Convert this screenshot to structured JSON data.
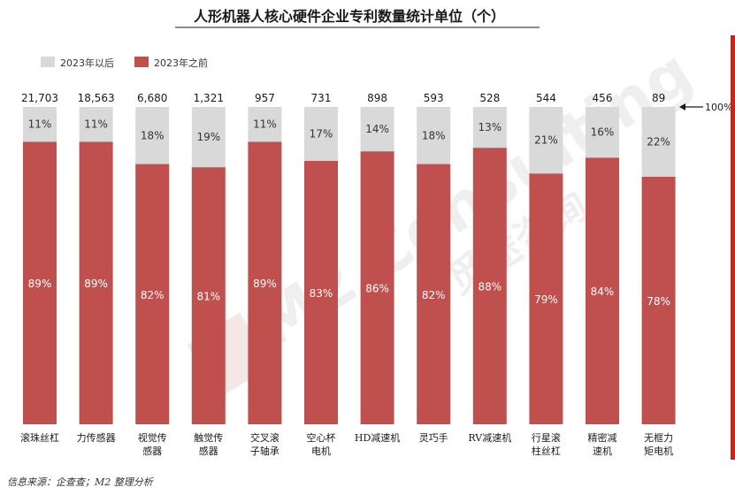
{
  "chart_data": {
    "type": "bar",
    "stacked": true,
    "normalized": true,
    "title": "人形机器人核心硬件企业专利数量统计单位（个）",
    "categories": [
      [
        "滚珠丝杠"
      ],
      [
        "力传感器"
      ],
      [
        "视觉传",
        "感器"
      ],
      [
        "触觉传",
        "感器"
      ],
      [
        "交叉滚",
        "子轴承"
      ],
      [
        "空心杯",
        "电机"
      ],
      [
        "HD减速机"
      ],
      [
        "灵巧手"
      ],
      [
        "RV减速机"
      ],
      [
        "行星滚",
        "柱丝杠"
      ],
      [
        "精密减",
        "速机"
      ],
      [
        "无框力",
        "矩电机"
      ]
    ],
    "totals": [
      "21,703",
      "18,563",
      "6,680",
      "1,321",
      "957",
      "731",
      "898",
      "593",
      "528",
      "544",
      "456",
      "89"
    ],
    "series": [
      {
        "name": "2023年以后",
        "color": "#d9d9d9",
        "values": [
          11,
          11,
          18,
          19,
          11,
          17,
          14,
          18,
          13,
          21,
          16,
          22
        ]
      },
      {
        "name": "2023年之前",
        "color": "#c0504d",
        "values": [
          89,
          89,
          82,
          81,
          89,
          83,
          86,
          82,
          88,
          79,
          84,
          78
        ]
      }
    ],
    "value_suffix": "%",
    "ylim": [
      0,
      100
    ],
    "reference_label": "100%",
    "legend_position": "top-left",
    "grid": false
  },
  "source_note": "信息来源：企查查；M2 整理分析",
  "watermark": {
    "text_en": "M2 Consulting",
    "text_cn": "觅途咨询"
  },
  "colors": {
    "accent_bar": "#c0504d",
    "right_edge": "#c0281f"
  }
}
